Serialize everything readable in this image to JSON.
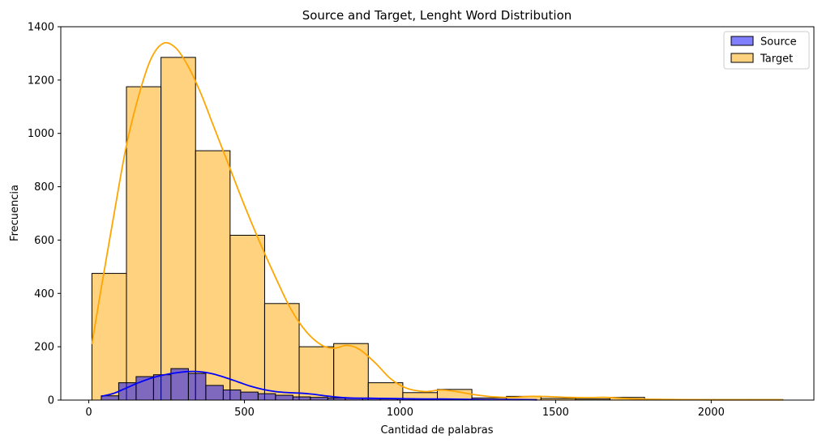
{
  "chart_data": {
    "type": "histogram",
    "title": "Source and Target, Lenght Word Distribution",
    "xlabel": "Cantidad de palabras",
    "ylabel": "Frecuencia",
    "xlim": [
      -90,
      2330
    ],
    "ylim": [
      0,
      1400
    ],
    "xticks": [
      0,
      500,
      1000,
      1500,
      2000
    ],
    "yticks": [
      0,
      200,
      400,
      600,
      800,
      1000,
      1200,
      1400
    ],
    "grid": false,
    "legend_position": "top-right",
    "series": [
      {
        "name": "Target",
        "color": "#ffa500",
        "bin_edges": [
          10,
          121,
          232,
          343,
          454,
          565,
          676,
          787,
          898,
          1009,
          1120,
          1231,
          1342,
          1453,
          1564,
          1675,
          1786,
          1897,
          2008,
          2119,
          2230
        ],
        "counts": [
          475,
          1175,
          1285,
          935,
          618,
          362,
          200,
          212,
          65,
          28,
          40,
          8,
          14,
          6,
          4,
          10,
          3,
          2,
          2,
          2
        ],
        "kde": [
          [
            10,
            210
          ],
          [
            40,
            420
          ],
          [
            80,
            690
          ],
          [
            120,
            950
          ],
          [
            160,
            1140
          ],
          [
            200,
            1280
          ],
          [
            240,
            1338
          ],
          [
            280,
            1320
          ],
          [
            320,
            1250
          ],
          [
            360,
            1150
          ],
          [
            400,
            1030
          ],
          [
            450,
            880
          ],
          [
            500,
            730
          ],
          [
            550,
            590
          ],
          [
            600,
            460
          ],
          [
            650,
            340
          ],
          [
            700,
            255
          ],
          [
            750,
            205
          ],
          [
            790,
            195
          ],
          [
            830,
            205
          ],
          [
            870,
            190
          ],
          [
            920,
            140
          ],
          [
            970,
            80
          ],
          [
            1020,
            45
          ],
          [
            1080,
            32
          ],
          [
            1130,
            38
          ],
          [
            1180,
            32
          ],
          [
            1240,
            20
          ],
          [
            1300,
            12
          ],
          [
            1360,
            10
          ],
          [
            1420,
            14
          ],
          [
            1480,
            13
          ],
          [
            1540,
            10
          ],
          [
            1600,
            9
          ],
          [
            1660,
            10
          ],
          [
            1720,
            6
          ],
          [
            1800,
            3
          ],
          [
            1900,
            2
          ],
          [
            2000,
            1
          ],
          [
            2100,
            1
          ],
          [
            2230,
            1
          ]
        ]
      },
      {
        "name": "Source",
        "color": "#0000ff",
        "bin_edges": [
          40,
          96,
          152,
          208,
          264,
          320,
          376,
          432,
          488,
          544,
          600,
          656,
          712,
          768,
          824,
          880,
          936,
          992,
          1048,
          1104,
          1160,
          1216,
          1272,
          1328,
          1384,
          1440
        ],
        "counts": [
          16,
          65,
          88,
          95,
          118,
          100,
          55,
          38,
          30,
          24,
          18,
          12,
          10,
          8,
          7,
          6,
          5,
          5,
          4,
          3,
          3,
          2,
          2,
          2,
          1
        ],
        "kde": [
          [
            40,
            14
          ],
          [
            80,
            25
          ],
          [
            120,
            45
          ],
          [
            160,
            65
          ],
          [
            200,
            82
          ],
          [
            240,
            94
          ],
          [
            280,
            102
          ],
          [
            320,
            107
          ],
          [
            360,
            106
          ],
          [
            400,
            98
          ],
          [
            440,
            84
          ],
          [
            480,
            68
          ],
          [
            520,
            52
          ],
          [
            560,
            40
          ],
          [
            600,
            32
          ],
          [
            640,
            28
          ],
          [
            680,
            26
          ],
          [
            720,
            22
          ],
          [
            760,
            16
          ],
          [
            800,
            11
          ],
          [
            840,
            8
          ],
          [
            900,
            7
          ],
          [
            960,
            6
          ],
          [
            1020,
            5
          ],
          [
            1080,
            4
          ],
          [
            1140,
            4
          ],
          [
            1200,
            3
          ],
          [
            1280,
            2
          ],
          [
            1360,
            2
          ],
          [
            1440,
            1
          ]
        ]
      }
    ]
  }
}
